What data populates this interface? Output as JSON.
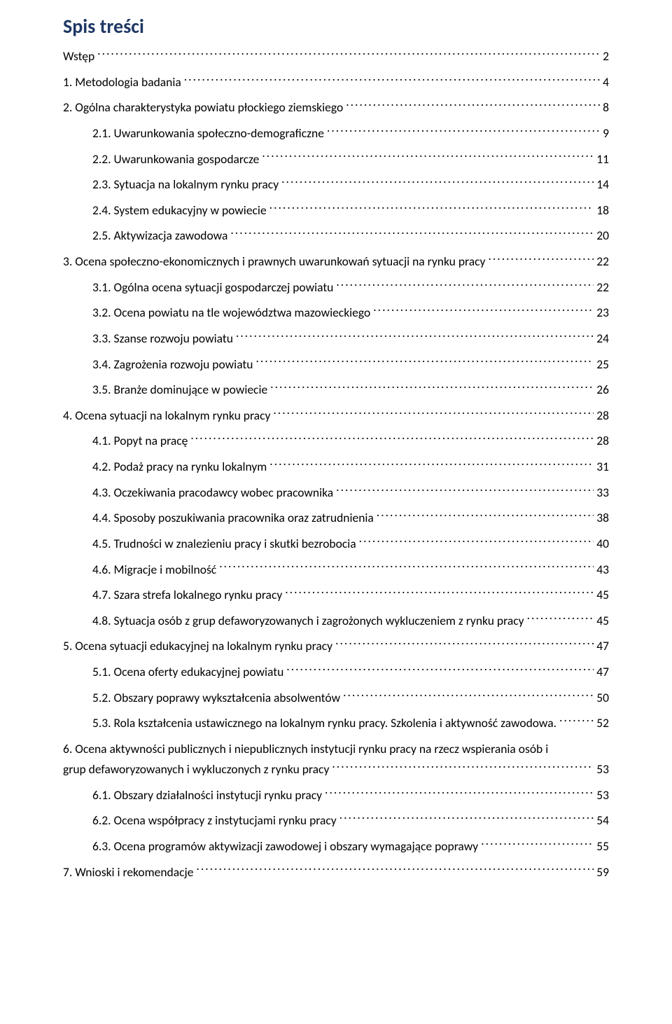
{
  "title": "Spis treści",
  "title_color": "#1f3864",
  "text_color": "#000000",
  "background_color": "#ffffff",
  "font_family": "Calibri",
  "font_size_pt": 13,
  "toc": [
    {
      "label": "Wstęp",
      "page": "2",
      "indent": 0
    },
    {
      "label": "1.      Metodologia badania",
      "page": "4",
      "indent": 0
    },
    {
      "label": "2.      Ogólna charakterystyka powiatu płockiego ziemskiego",
      "page": "8",
      "indent": 0
    },
    {
      "label": "2.1.     Uwarunkowania społeczno-demograficzne",
      "page": "9",
      "indent": 1
    },
    {
      "label": "2.2.     Uwarunkowania gospodarcze",
      "page": "11",
      "indent": 1
    },
    {
      "label": "2.3.     Sytuacja na lokalnym rynku pracy",
      "page": "14",
      "indent": 1
    },
    {
      "label": "2.4.     System edukacyjny w powiecie",
      "page": "18",
      "indent": 1
    },
    {
      "label": "2.5.     Aktywizacja zawodowa",
      "page": "20",
      "indent": 1
    },
    {
      "label": "3.      Ocena społeczno-ekonomicznych i prawnych uwarunkowań sytuacji na rynku pracy",
      "page": "22",
      "indent": 0
    },
    {
      "label": "3.1.     Ogólna ocena sytuacji gospodarczej powiatu",
      "page": "22",
      "indent": 1
    },
    {
      "label": "3.2.     Ocena powiatu na tle województwa mazowieckiego",
      "page": "23",
      "indent": 1
    },
    {
      "label": "3.3.     Szanse rozwoju powiatu",
      "page": "24",
      "indent": 1
    },
    {
      "label": "3.4.     Zagrożenia rozwoju powiatu",
      "page": "25",
      "indent": 1
    },
    {
      "label": "3.5.     Branże dominujące w powiecie",
      "page": "26",
      "indent": 1
    },
    {
      "label": "4.      Ocena sytuacji na lokalnym rynku pracy",
      "page": "28",
      "indent": 0
    },
    {
      "label": "4.1.     Popyt na pracę",
      "page": "28",
      "indent": 1
    },
    {
      "label": "4.2.     Podaż pracy na rynku lokalnym",
      "page": "31",
      "indent": 1
    },
    {
      "label": "4.3.     Oczekiwania pracodawcy wobec pracownika",
      "page": "33",
      "indent": 1
    },
    {
      "label": "4.4.     Sposoby poszukiwania pracownika oraz zatrudnienia",
      "page": "38",
      "indent": 1
    },
    {
      "label": "4.5.     Trudności w znalezieniu pracy i skutki bezrobocia",
      "page": "40",
      "indent": 1
    },
    {
      "label": "4.6.     Migracje i mobilność",
      "page": "43",
      "indent": 1
    },
    {
      "label": "4.7.     Szara strefa lokalnego rynku pracy",
      "page": "45",
      "indent": 1
    },
    {
      "label": "4.8.     Sytuacja osób z grup defaworyzowanych i zagrożonych wykluczeniem z rynku pracy",
      "page": "45",
      "indent": 1
    },
    {
      "label": "5.      Ocena sytuacji edukacyjnej na lokalnym rynku pracy",
      "page": "47",
      "indent": 0
    },
    {
      "label": "5.1.     Ocena oferty edukacyjnej powiatu",
      "page": "47",
      "indent": 1
    },
    {
      "label": "5.2.     Obszary poprawy wykształcenia absolwentów",
      "page": "50",
      "indent": 1
    },
    {
      "label": "5.3.     Rola kształcenia ustawicznego na lokalnym rynku pracy. Szkolenia i aktywność zawodowa.",
      "page": "52",
      "indent": 1
    },
    {
      "label": "6.      Ocena aktywności publicznych i niepublicznych instytucji rynku pracy na rzecz wspierania osób i\ngrup defaworyzowanych i wykluczonych z rynku pracy",
      "page": "53",
      "indent": 0,
      "wrap": true
    },
    {
      "label": "6.1.     Obszary działalności instytucji rynku pracy",
      "page": "53",
      "indent": 1
    },
    {
      "label": "6.2.     Ocena współpracy z instytucjami rynku pracy",
      "page": "54",
      "indent": 1
    },
    {
      "label": "6.3.     Ocena programów aktywizacji zawodowej i obszary wymagające poprawy",
      "page": "55",
      "indent": 1
    },
    {
      "label": "7.      Wnioski i rekomendacje",
      "page": "59",
      "indent": 0
    }
  ]
}
